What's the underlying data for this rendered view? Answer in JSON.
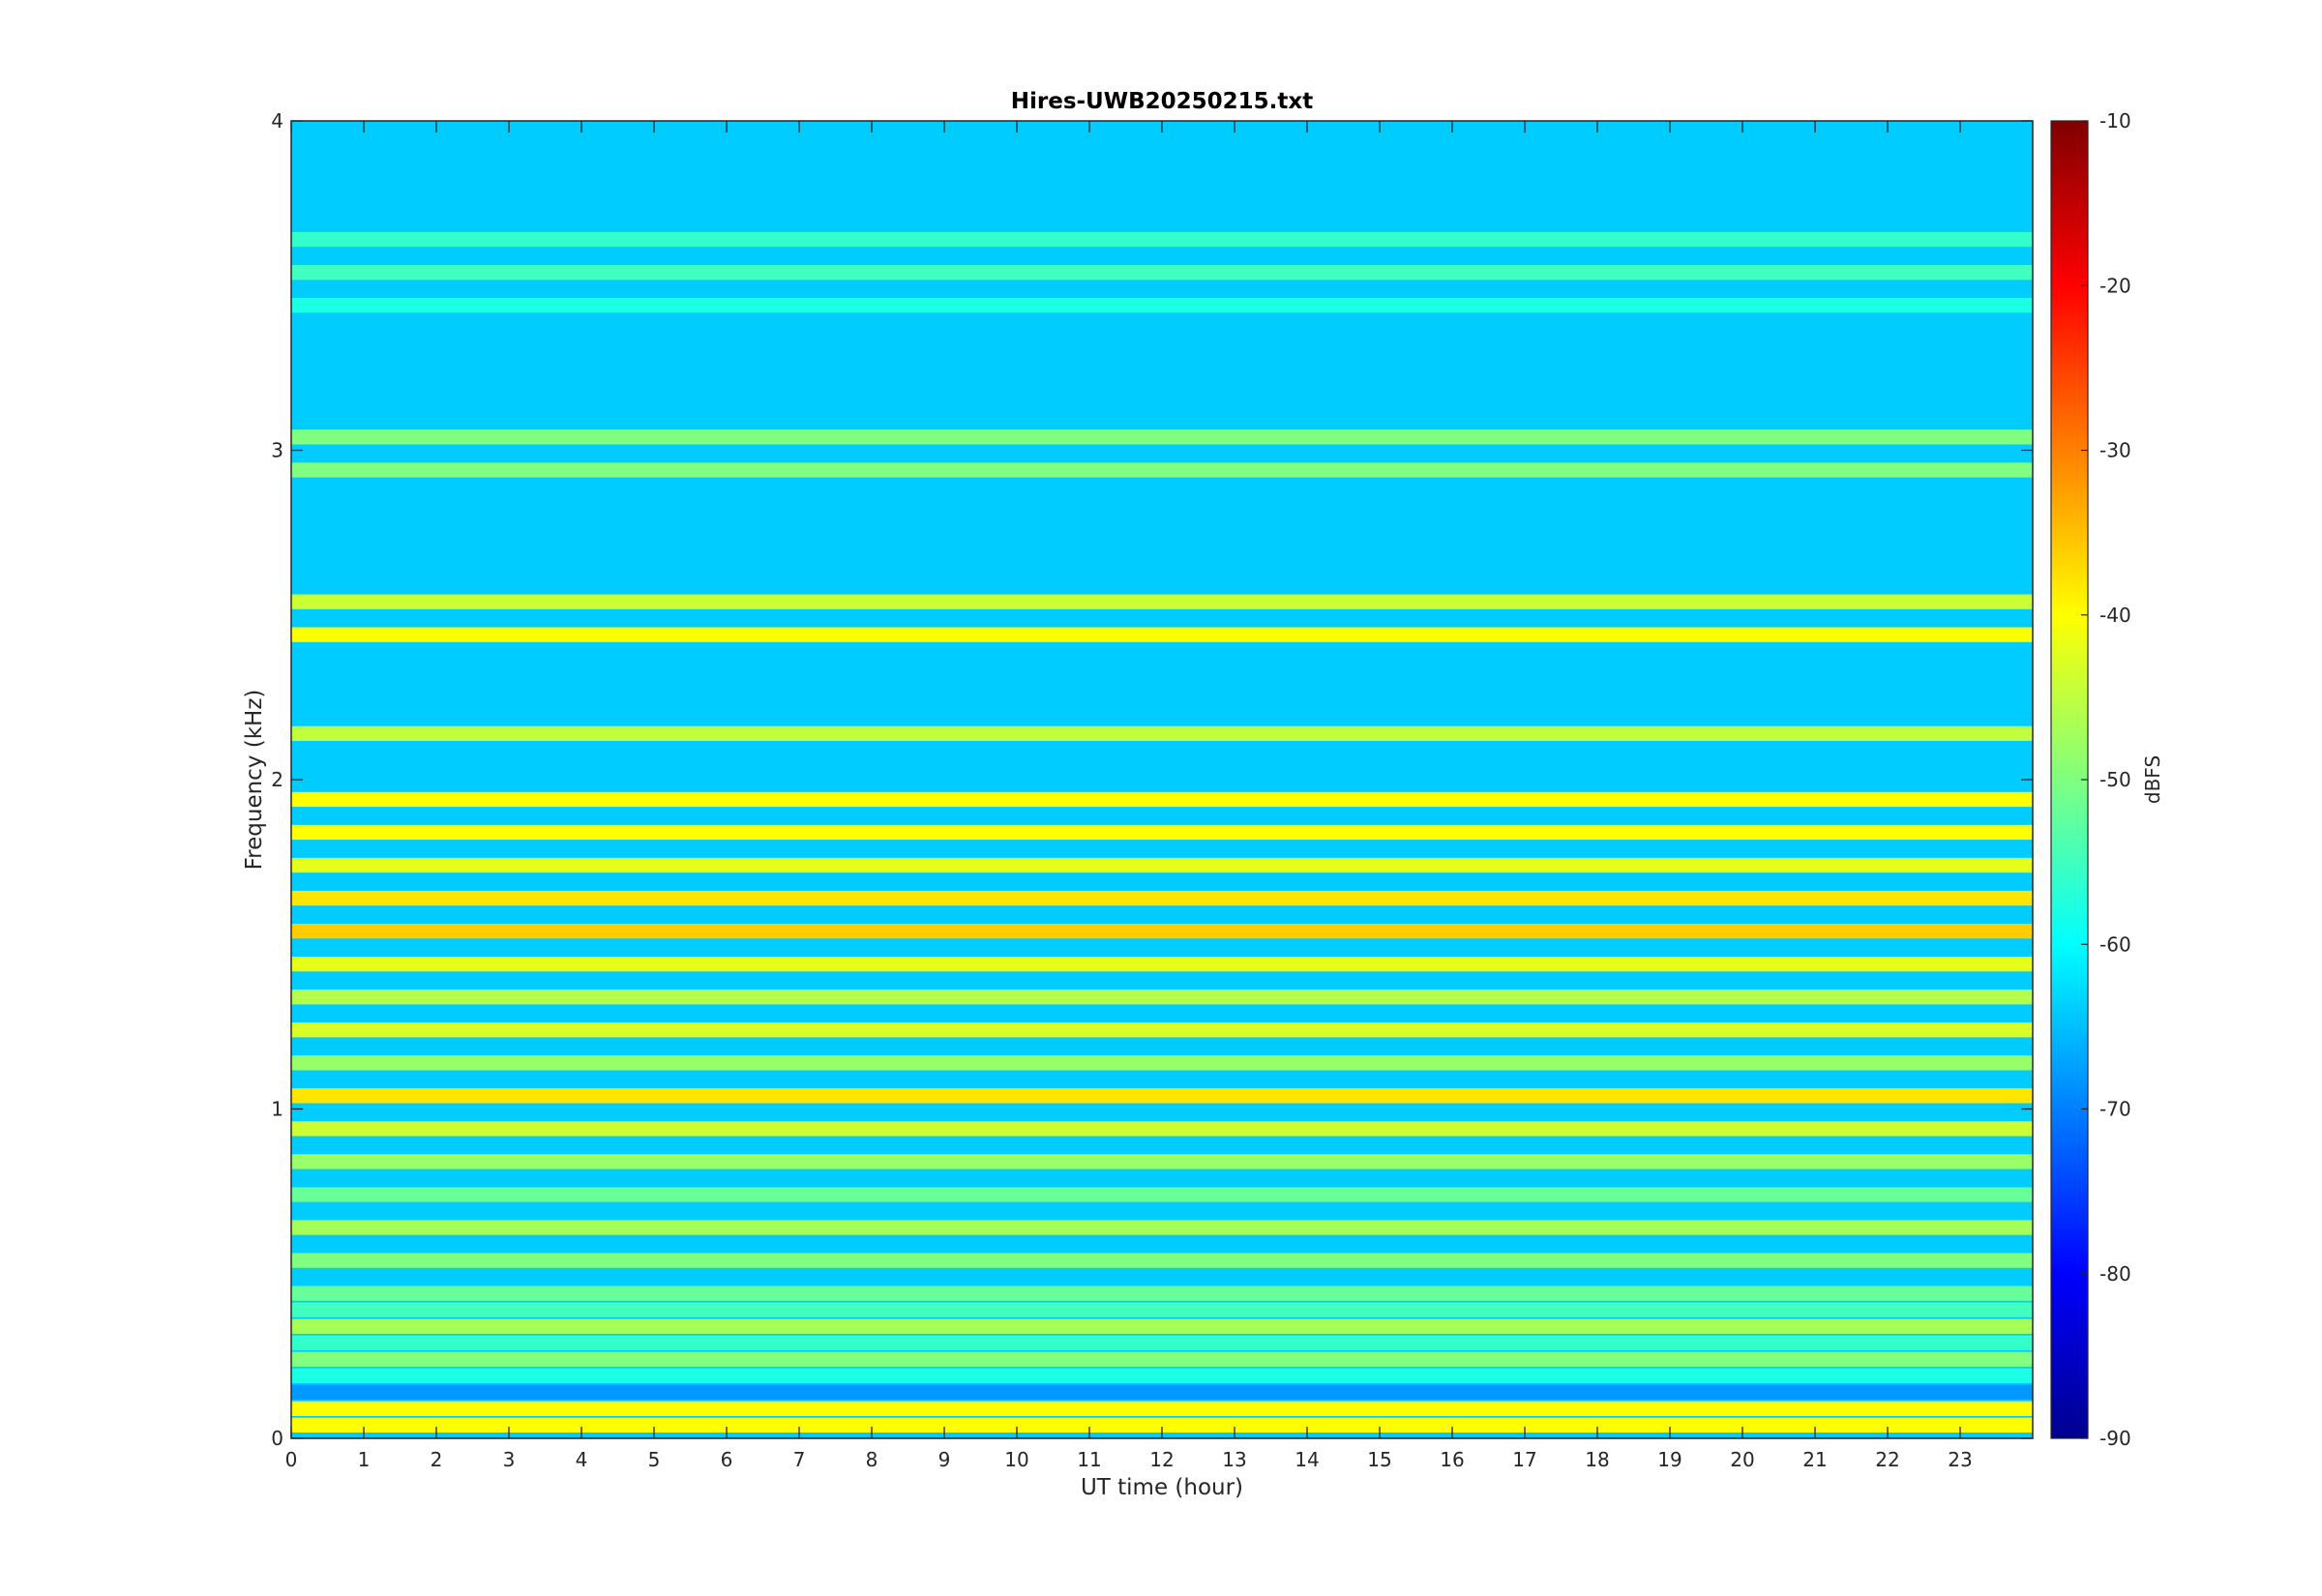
{
  "chart_data": {
    "type": "heatmap",
    "title": "Hires-UWB20250215.txt",
    "xlabel": "UT time (hour)",
    "ylabel": "Frequency (kHz)",
    "xlim": [
      0,
      24
    ],
    "ylim": [
      0,
      4
    ],
    "x_ticks": [
      0,
      1,
      2,
      3,
      4,
      5,
      6,
      7,
      8,
      9,
      10,
      11,
      12,
      13,
      14,
      15,
      16,
      17,
      18,
      19,
      20,
      21,
      22,
      23
    ],
    "y_ticks": [
      0,
      1,
      2,
      3,
      4
    ],
    "colormap": "jet",
    "colorbar": {
      "label": "dBFS",
      "range": [
        -90,
        -10
      ],
      "ticks": [
        -90,
        -80,
        -70,
        -60,
        -50,
        -40,
        -30,
        -20,
        -10
      ]
    },
    "grid": false,
    "frequency_bands_kHz_dBFS": [
      {
        "f": 0.04,
        "level": -40
      },
      {
        "f": 0.09,
        "level": -40
      },
      {
        "f": 0.14,
        "level": -68
      },
      {
        "f": 0.19,
        "level": -58
      },
      {
        "f": 0.24,
        "level": -50
      },
      {
        "f": 0.29,
        "level": -56
      },
      {
        "f": 0.34,
        "level": -47
      },
      {
        "f": 0.39,
        "level": -55
      },
      {
        "f": 0.44,
        "level": -52
      },
      {
        "f": 0.54,
        "level": -50
      },
      {
        "f": 0.64,
        "level": -47
      },
      {
        "f": 0.74,
        "level": -52
      },
      {
        "f": 0.84,
        "level": -48
      },
      {
        "f": 0.94,
        "level": -44
      },
      {
        "f": 1.04,
        "level": -38
      },
      {
        "f": 1.14,
        "level": -48
      },
      {
        "f": 1.24,
        "level": -43
      },
      {
        "f": 1.34,
        "level": -46
      },
      {
        "f": 1.44,
        "level": -42
      },
      {
        "f": 1.54,
        "level": -36
      },
      {
        "f": 1.64,
        "level": -38
      },
      {
        "f": 1.74,
        "level": -42
      },
      {
        "f": 1.84,
        "level": -40
      },
      {
        "f": 1.94,
        "level": -40
      },
      {
        "f": 2.14,
        "level": -45
      },
      {
        "f": 2.44,
        "level": -40
      },
      {
        "f": 2.54,
        "level": -44
      },
      {
        "f": 2.94,
        "level": -50
      },
      {
        "f": 3.04,
        "level": -50
      },
      {
        "f": 3.44,
        "level": -58
      },
      {
        "f": 3.54,
        "level": -55
      },
      {
        "f": 3.64,
        "level": -56
      },
      {
        "f": 3.84,
        "level": -64
      }
    ],
    "background_level_dBFS": -64
  }
}
